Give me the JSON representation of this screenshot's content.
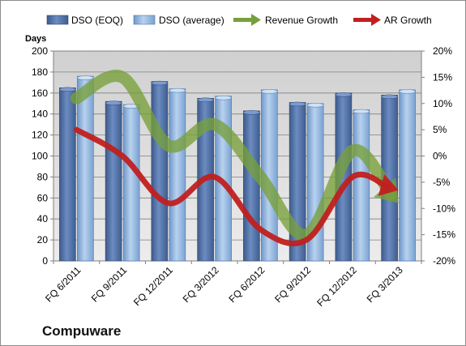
{
  "chart_data": {
    "type": "bar",
    "title": "",
    "company": "Compuware",
    "ylabel": "Days",
    "xlabel": "",
    "ylim": [
      0,
      200
    ],
    "y2lim": [
      -20,
      20
    ],
    "grid": true,
    "legend_position": "top",
    "categories": [
      "FQ 6/2011",
      "FQ 9/2011",
      "FQ 12/2011",
      "FQ 3/2012",
      "FQ 6/2012",
      "FQ 9/2012",
      "FQ 12/2012",
      "FQ 3/2013"
    ],
    "y_ticks": [
      "0",
      "20",
      "40",
      "60",
      "80",
      "100",
      "120",
      "140",
      "160",
      "180",
      "200"
    ],
    "y2_ticks": [
      "-20%",
      "-15%",
      "-10%",
      "-5%",
      "0%",
      "5%",
      "10%",
      "15%",
      "20%"
    ],
    "series": [
      {
        "name": "DSO (EOQ)",
        "kind": "bar",
        "color": "#4f6fa3",
        "values": [
          165,
          152,
          171,
          155,
          143,
          151,
          160,
          158
        ]
      },
      {
        "name": "DSO (average)",
        "kind": "bar",
        "color": "#8db4e2",
        "values": [
          176,
          149,
          164,
          157,
          163,
          150,
          144,
          163
        ]
      },
      {
        "name": "Revenue Growth",
        "kind": "line",
        "axis": "right",
        "color": "#77a03a",
        "values": [
          11,
          15,
          2,
          6,
          -4,
          -15,
          1,
          -9
        ]
      },
      {
        "name": "AR Growth",
        "kind": "line",
        "axis": "right",
        "color": "#c0201f",
        "values": [
          5,
          0,
          -9,
          -4,
          -14,
          -16,
          -4,
          -6.5
        ]
      }
    ]
  }
}
